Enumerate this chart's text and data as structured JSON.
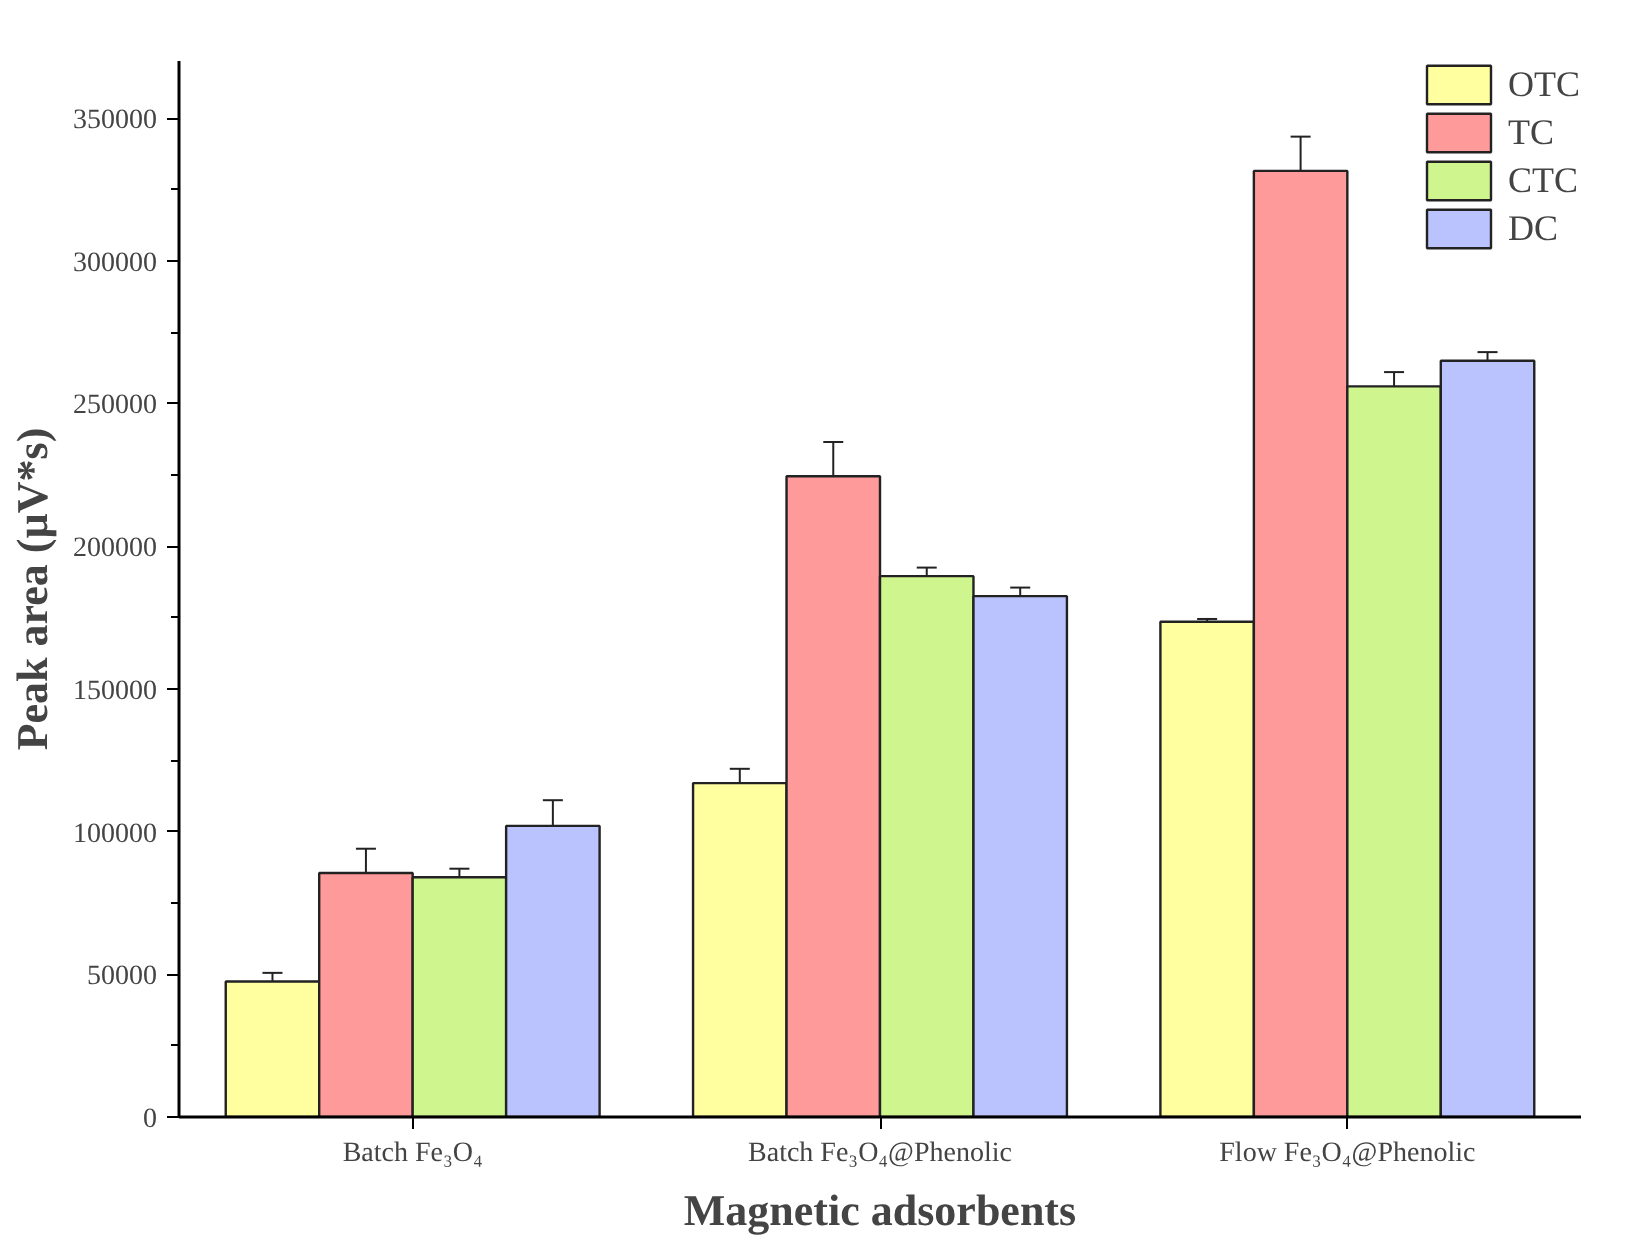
{
  "chart_data": {
    "type": "bar",
    "xlabel": "Magnetic adsorbents",
    "ylabel": "Peak area (µV*s)",
    "categories": [
      "Batch Fe₃O₄",
      "Batch Fe₃O₄@Phenolic",
      "Flow Fe₃O₄@Phenolic"
    ],
    "series": [
      {
        "name": "OTC",
        "color": "#ffff9f",
        "values": [
          47500,
          117000,
          173500
        ],
        "errors": [
          3000,
          5000,
          1000
        ]
      },
      {
        "name": "TC",
        "color": "#ff9a9a",
        "values": [
          85500,
          224500,
          331500
        ],
        "errors": [
          8500,
          12000,
          12000
        ]
      },
      {
        "name": "CTC",
        "color": "#cff58f",
        "values": [
          84000,
          189500,
          256000
        ],
        "errors": [
          3000,
          3000,
          5000
        ]
      },
      {
        "name": "DC",
        "color": "#bac3fd",
        "values": [
          102000,
          182500,
          265000
        ],
        "errors": [
          9000,
          3000,
          3000
        ]
      }
    ],
    "ylim": [
      0,
      370000
    ],
    "yticks": [
      0,
      50000,
      100000,
      150000,
      200000,
      250000,
      300000,
      350000
    ],
    "grid": false,
    "legend": "top right"
  }
}
